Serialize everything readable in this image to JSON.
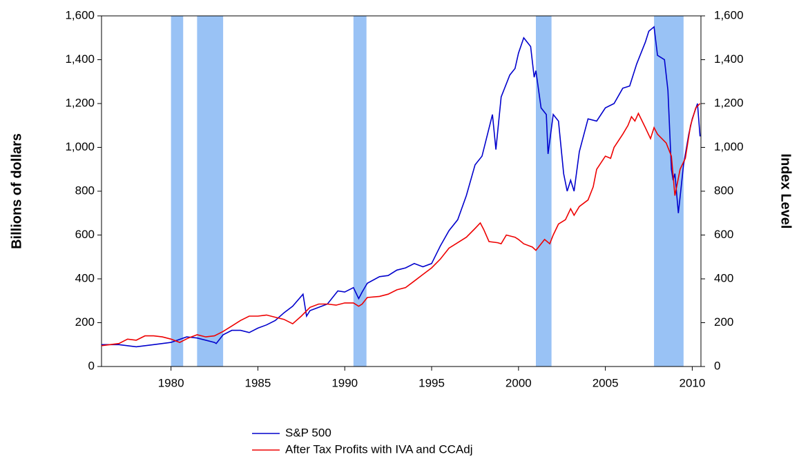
{
  "chart_data": {
    "type": "line",
    "y_label": "Billions of dollars",
    "y2_label": "Index Level",
    "xlim": [
      1976,
      2010.5
    ],
    "xticks": [
      1980,
      1985,
      1990,
      1995,
      2000,
      2005,
      2010
    ],
    "ylim": [
      0,
      1600
    ],
    "yticks": [
      0,
      200,
      400,
      600,
      800,
      {
        "value": 1000,
        "label": "1,000"
      },
      {
        "value": 1200,
        "label": "1,200"
      },
      {
        "value": 1400,
        "label": "1,400"
      },
      {
        "value": 1600,
        "label": "1,600"
      }
    ],
    "y2lim": [
      0,
      1600
    ],
    "y2ticks": [
      0,
      200,
      400,
      600,
      800,
      {
        "value": 1000,
        "label": "1,000"
      },
      {
        "value": 1200,
        "label": "1,200"
      },
      {
        "value": 1400,
        "label": "1,400"
      },
      {
        "value": 1600,
        "label": "1,600"
      }
    ],
    "grid": false,
    "legend": "bottom",
    "shaded_periods": [
      [
        1980.0,
        1980.7
      ],
      [
        1981.5,
        1983.0
      ],
      [
        1990.5,
        1991.25
      ],
      [
        2001.0,
        2001.9
      ],
      [
        2007.8,
        2009.5
      ]
    ],
    "shade_color": "#99c2f5",
    "series": [
      {
        "name": "S&P 500",
        "color": "#0000cc",
        "axis": "y2",
        "x": [
          1976,
          1977,
          1978,
          1979,
          1980,
          1980.9,
          1981.5,
          1982.5,
          1982.6,
          1983,
          1983.5,
          1984,
          1984.5,
          1985,
          1985.5,
          1986,
          1986.5,
          1987,
          1987.6,
          1987.8,
          1988,
          1988.5,
          1989,
          1989.6,
          1990,
          1990.5,
          1990.8,
          1991,
          1991.3,
          1992,
          1992.5,
          1993,
          1993.5,
          1994,
          1994.5,
          1995,
          1995.5,
          1996,
          1996.5,
          1997,
          1997.5,
          1997.9,
          1998.5,
          1998.7,
          1999,
          1999.5,
          1999.8,
          2000,
          2000.3,
          2000.7,
          2000.9,
          2001,
          2001.3,
          2001.6,
          2001.7,
          2002,
          2002.3,
          2002.6,
          2002.8,
          2003,
          2003.2,
          2003.5,
          2004,
          2004.5,
          2005,
          2005.5,
          2006,
          2006.4,
          2006.8,
          2007.3,
          2007.5,
          2007.8,
          2008,
          2008.4,
          2008.6,
          2008.8,
          2008.9,
          2009,
          2009.2,
          2009.5,
          2009.8,
          2010,
          2010.3,
          2010.45
        ],
        "values": [
          100,
          100,
          90,
          100,
          110,
          135,
          130,
          110,
          105,
          145,
          165,
          165,
          155,
          175,
          190,
          210,
          245,
          275,
          330,
          230,
          255,
          270,
          285,
          345,
          340,
          360,
          310,
          340,
          380,
          410,
          415,
          440,
          450,
          470,
          455,
          470,
          550,
          620,
          670,
          780,
          920,
          960,
          1150,
          990,
          1230,
          1330,
          1360,
          1430,
          1500,
          1460,
          1320,
          1350,
          1180,
          1150,
          970,
          1150,
          1120,
          880,
          800,
          850,
          800,
          980,
          1130,
          1120,
          1180,
          1200,
          1270,
          1280,
          1380,
          1480,
          1530,
          1550,
          1420,
          1400,
          1260,
          900,
          850,
          880,
          700,
          920,
          1060,
          1130,
          1200,
          1050
        ]
      },
      {
        "name": "After Tax Profits with IVA and CCAdj",
        "color": "#ee0000",
        "axis": "y",
        "x": [
          1976,
          1977,
          1977.5,
          1978,
          1978.5,
          1979,
          1979.5,
          1980,
          1980.5,
          1981,
          1981.5,
          1982,
          1982.5,
          1983,
          1983.5,
          1984,
          1984.5,
          1985,
          1985.5,
          1986,
          1986.5,
          1987,
          1987.5,
          1988,
          1988.5,
          1989,
          1989.5,
          1990,
          1990.5,
          1990.8,
          1991,
          1991.3,
          1992,
          1992.5,
          1993,
          1993.5,
          1994,
          1994.5,
          1995,
          1995.5,
          1996,
          1996.5,
          1997,
          1997.5,
          1997.8,
          1998,
          1998.3,
          1998.8,
          1999,
          1999.3,
          1999.8,
          2000,
          2000.3,
          2000.8,
          2001,
          2001.5,
          2001.8,
          2002,
          2002.3,
          2002.7,
          2003,
          2003.2,
          2003.5,
          2004,
          2004.3,
          2004.5,
          2005,
          2005.3,
          2005.5,
          2006,
          2006.3,
          2006.5,
          2006.7,
          2006.9,
          2007.3,
          2007.6,
          2007.8,
          2008,
          2008.5,
          2008.8,
          2009,
          2009.3,
          2009.6,
          2009.9,
          2010.2,
          2010.45
        ],
        "values": [
          95,
          105,
          125,
          120,
          140,
          140,
          135,
          125,
          110,
          130,
          145,
          135,
          140,
          160,
          185,
          210,
          230,
          230,
          235,
          225,
          215,
          195,
          230,
          270,
          285,
          285,
          280,
          290,
          290,
          275,
          285,
          315,
          320,
          330,
          350,
          360,
          390,
          420,
          450,
          490,
          540,
          565,
          590,
          630,
          655,
          625,
          570,
          565,
          560,
          600,
          590,
          580,
          560,
          545,
          530,
          580,
          560,
          600,
          650,
          670,
          720,
          690,
          730,
          760,
          820,
          900,
          960,
          950,
          1000,
          1060,
          1100,
          1140,
          1120,
          1155,
          1090,
          1040,
          1090,
          1060,
          1020,
          960,
          780,
          900,
          950,
          1100,
          1180,
          1200
        ]
      }
    ]
  }
}
